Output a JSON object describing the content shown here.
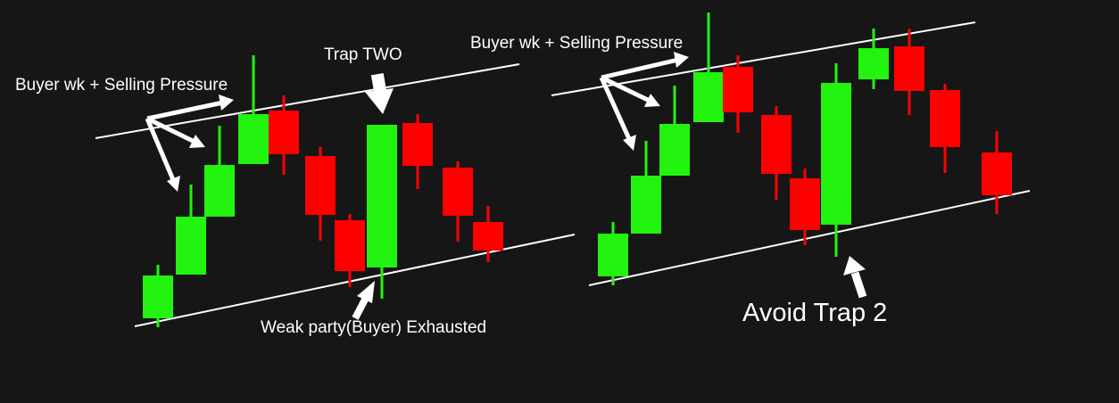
{
  "colors": {
    "background": "#161616",
    "bull": "#22f30f",
    "bear": "#ff0000",
    "line": "#ffffff",
    "arrow": "#ffffff"
  },
  "left_panel": {
    "label_trap": "Trap TWO",
    "label_buyer": "Buyer wk + Selling Pressure",
    "label_weak": "Weak party(Buyer) Exhausted",
    "candles": [
      {
        "dir": "bull"
      },
      {
        "dir": "bull"
      },
      {
        "dir": "bull"
      },
      {
        "dir": "bull"
      },
      {
        "dir": "bear"
      },
      {
        "dir": "bear"
      },
      {
        "dir": "bear"
      },
      {
        "dir": "bull"
      },
      {
        "dir": "bear"
      },
      {
        "dir": "bear"
      },
      {
        "dir": "bear"
      }
    ]
  },
  "right_panel": {
    "label_buyer": "Buyer wk + Selling Pressure",
    "label_avoid": "Avoid Trap 2",
    "candles": [
      {
        "dir": "bull"
      },
      {
        "dir": "bull"
      },
      {
        "dir": "bull"
      },
      {
        "dir": "bull"
      },
      {
        "dir": "bear"
      },
      {
        "dir": "bear"
      },
      {
        "dir": "bear"
      },
      {
        "dir": "bull"
      },
      {
        "dir": "bull"
      },
      {
        "dir": "bear"
      },
      {
        "dir": "bear"
      },
      {
        "dir": "bear"
      }
    ]
  }
}
